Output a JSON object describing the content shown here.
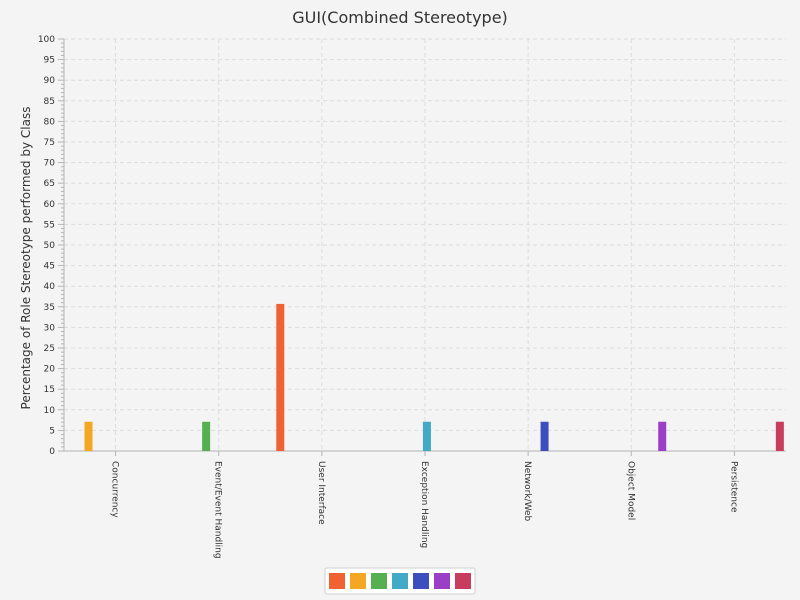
{
  "chart_data": {
    "type": "bar",
    "title": "GUI(Combined Stereotype)",
    "xlabel": "",
    "ylabel": "Percentage of Role Stereotype performed by Class",
    "ylim": [
      0,
      100
    ],
    "y_ticks": [
      0,
      5,
      10,
      15,
      20,
      25,
      30,
      35,
      40,
      45,
      50,
      55,
      60,
      65,
      70,
      75,
      80,
      85,
      90,
      95,
      100
    ],
    "categories": [
      "Concurrency",
      "Event/Event Handling",
      "User Interface",
      "Exception Handling",
      "Network/Web",
      "Object Model",
      "Persistence"
    ],
    "series": [
      {
        "color": "#f06232",
        "values": [
          0,
          0,
          35.7,
          0,
          0,
          0,
          0
        ]
      },
      {
        "color": "#f5a623",
        "values": [
          7.1,
          0,
          0,
          0,
          0,
          0,
          0
        ]
      },
      {
        "color": "#56b04f",
        "values": [
          0,
          7.1,
          0,
          0,
          0,
          0,
          0
        ]
      },
      {
        "color": "#42a9c6",
        "values": [
          0,
          0,
          0,
          7.1,
          0,
          0,
          0
        ]
      },
      {
        "color": "#3d4ebe",
        "values": [
          0,
          0,
          0,
          0,
          7.1,
          0,
          0
        ]
      },
      {
        "color": "#9b3fc7",
        "values": [
          0,
          0,
          0,
          0,
          0,
          7.1,
          0
        ]
      },
      {
        "color": "#c83c5e",
        "values": [
          0,
          0,
          0,
          0,
          0,
          0,
          7.1
        ]
      }
    ],
    "grid": true,
    "legend_position": "bottom-center"
  }
}
